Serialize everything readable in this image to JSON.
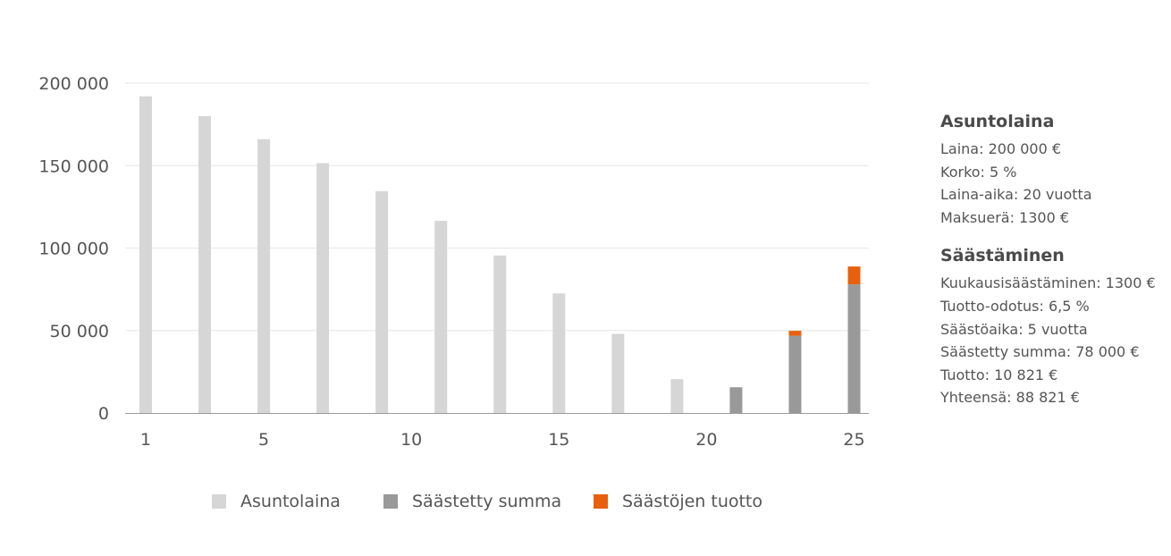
{
  "chart_data": {
    "type": "bar",
    "x": [
      1,
      2,
      3,
      4,
      5,
      6,
      7,
      8,
      9,
      10,
      11,
      12,
      13,
      14,
      15,
      16,
      17,
      18,
      19,
      20,
      21,
      22,
      23,
      24,
      25
    ],
    "x_ticks": [
      "1",
      "5",
      "10",
      "15",
      "20",
      "25"
    ],
    "y_ticks": [
      "0",
      "50 000",
      "100 000",
      "150 000",
      "200 000"
    ],
    "ylim": [
      0,
      200000
    ],
    "stacked": true,
    "grid": true,
    "legend_position": "bottom",
    "series": [
      {
        "name": "Asuntolaina",
        "color": "#d6d6d6",
        "points": [
          [
            1,
            192000
          ],
          [
            3,
            180000
          ],
          [
            5,
            166000
          ],
          [
            7,
            151500
          ],
          [
            9,
            134500
          ],
          [
            11,
            116500
          ],
          [
            13,
            95500
          ],
          [
            15,
            72500
          ],
          [
            17,
            48000
          ],
          [
            19,
            20500
          ]
        ]
      },
      {
        "name": "Säästetty summa",
        "color": "#999999",
        "points": [
          [
            21,
            15600
          ],
          [
            23,
            46800
          ],
          [
            25,
            78000
          ]
        ]
      },
      {
        "name": "Säästöjen tuotto",
        "color": "#e8600d",
        "points": [
          [
            23,
            3000
          ],
          [
            25,
            10821
          ]
        ]
      }
    ]
  },
  "info": {
    "loan": {
      "title": "Asuntolaina",
      "lines": [
        "Laina: 200 000 €",
        "Korko: 5 %",
        "Laina-aika: 20 vuotta",
        "Maksuerä: 1300 €"
      ]
    },
    "saving": {
      "title": "Säästäminen",
      "lines": [
        "Kuukausisäästäminen: 1300 €",
        "Tuotto-odotus: 6,5 %",
        "Säästöaika: 5 vuotta",
        "Säästetty summa: 78 000 €",
        "Tuotto: 10 821 €",
        "Yhteensä: 88 821 €"
      ]
    }
  }
}
